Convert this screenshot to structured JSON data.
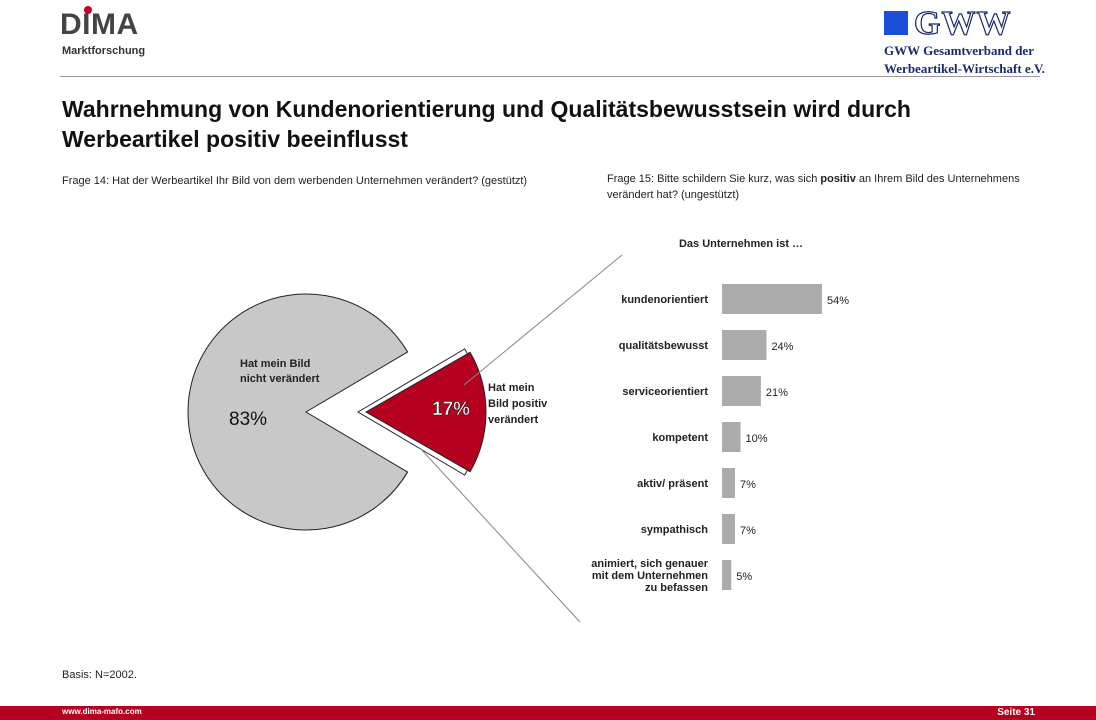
{
  "header": {
    "dima_logo_text": "DIMA",
    "dima_logo_subtitle": "Marktforschung",
    "gww_logo_text": "GWW",
    "gww_line1": "GWW Gesamtverband der",
    "gww_line2": "Werbeartikel-Wirtschaft e.V."
  },
  "page_title": "Wahrnehmung von Kundenorientierung und Qualitätsbewusstsein wird durch Werbeartikel positiv beeinflusst",
  "question_14": "Frage 14: Hat der Werbeartikel Ihr Bild von dem werbenden Unternehmen verändert? (gestützt)",
  "question_15_before": "Frage 15: Bitte schildern Sie kurz, was sich ",
  "question_15_bold": "positiv",
  "question_15_after": " an Ihrem Bild des Unternehmens verändert hat? (ungestützt)",
  "basis": "Basis: N=2002.",
  "footer": {
    "url": "www.dima-mafo.com",
    "page": "Seite 31"
  },
  "colors": {
    "pie_main": "#c8c8c8",
    "pie_slice": "#b5001f",
    "bar": "#ababab",
    "footer": "#b5001f"
  },
  "chart_data": [
    {
      "type": "pie",
      "slices": [
        {
          "label_lines": [
            "Hat mein Bild",
            "nicht verändert"
          ],
          "value": 83,
          "value_label": "83%"
        },
        {
          "label_lines": [
            "Hat mein",
            "Bild positiv",
            "verändert"
          ],
          "value": 17,
          "value_label": "17%"
        }
      ]
    },
    {
      "type": "bar",
      "orientation": "horizontal",
      "title": "Das Unternehmen ist …",
      "categories": [
        [
          "kundenorientiert"
        ],
        [
          "qualitätsbewusst"
        ],
        [
          "serviceorientiert"
        ],
        [
          "kompetent"
        ],
        [
          "aktiv/ präsent"
        ],
        [
          "sympathisch"
        ],
        [
          "animiert, sich genauer",
          "mit dem Unternehmen",
          "zu befassen"
        ]
      ],
      "values": [
        54,
        24,
        21,
        10,
        7,
        7,
        5
      ],
      "value_labels": [
        "54%",
        "24%",
        "21%",
        "10%",
        "7%",
        "7%",
        "5%"
      ]
    }
  ]
}
